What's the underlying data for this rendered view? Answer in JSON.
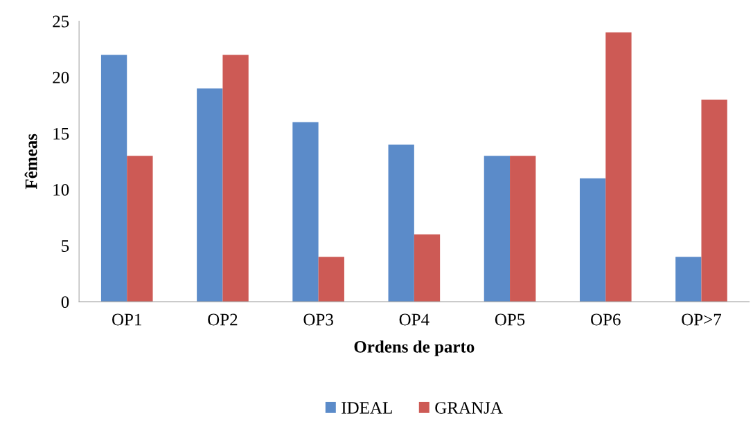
{
  "chart_data": {
    "type": "bar",
    "xlabel": "Ordens de parto",
    "ylabel": "Fêmeas",
    "categories": [
      "OP1",
      "OP2",
      "OP3",
      "OP4",
      "OP5",
      "OP6",
      "OP>7"
    ],
    "series": [
      {
        "name": "IDEAL",
        "color": "#5b8bc9",
        "values": [
          22,
          19,
          16,
          14,
          13,
          11,
          4
        ]
      },
      {
        "name": "GRANJA",
        "color": "#cd5a55",
        "values": [
          13,
          22,
          4,
          6,
          13,
          24,
          18
        ]
      }
    ],
    "ylim": [
      0,
      25
    ],
    "yticks": [
      0,
      5,
      10,
      15,
      20,
      25
    ],
    "grid": false,
    "legend": "bottom"
  }
}
